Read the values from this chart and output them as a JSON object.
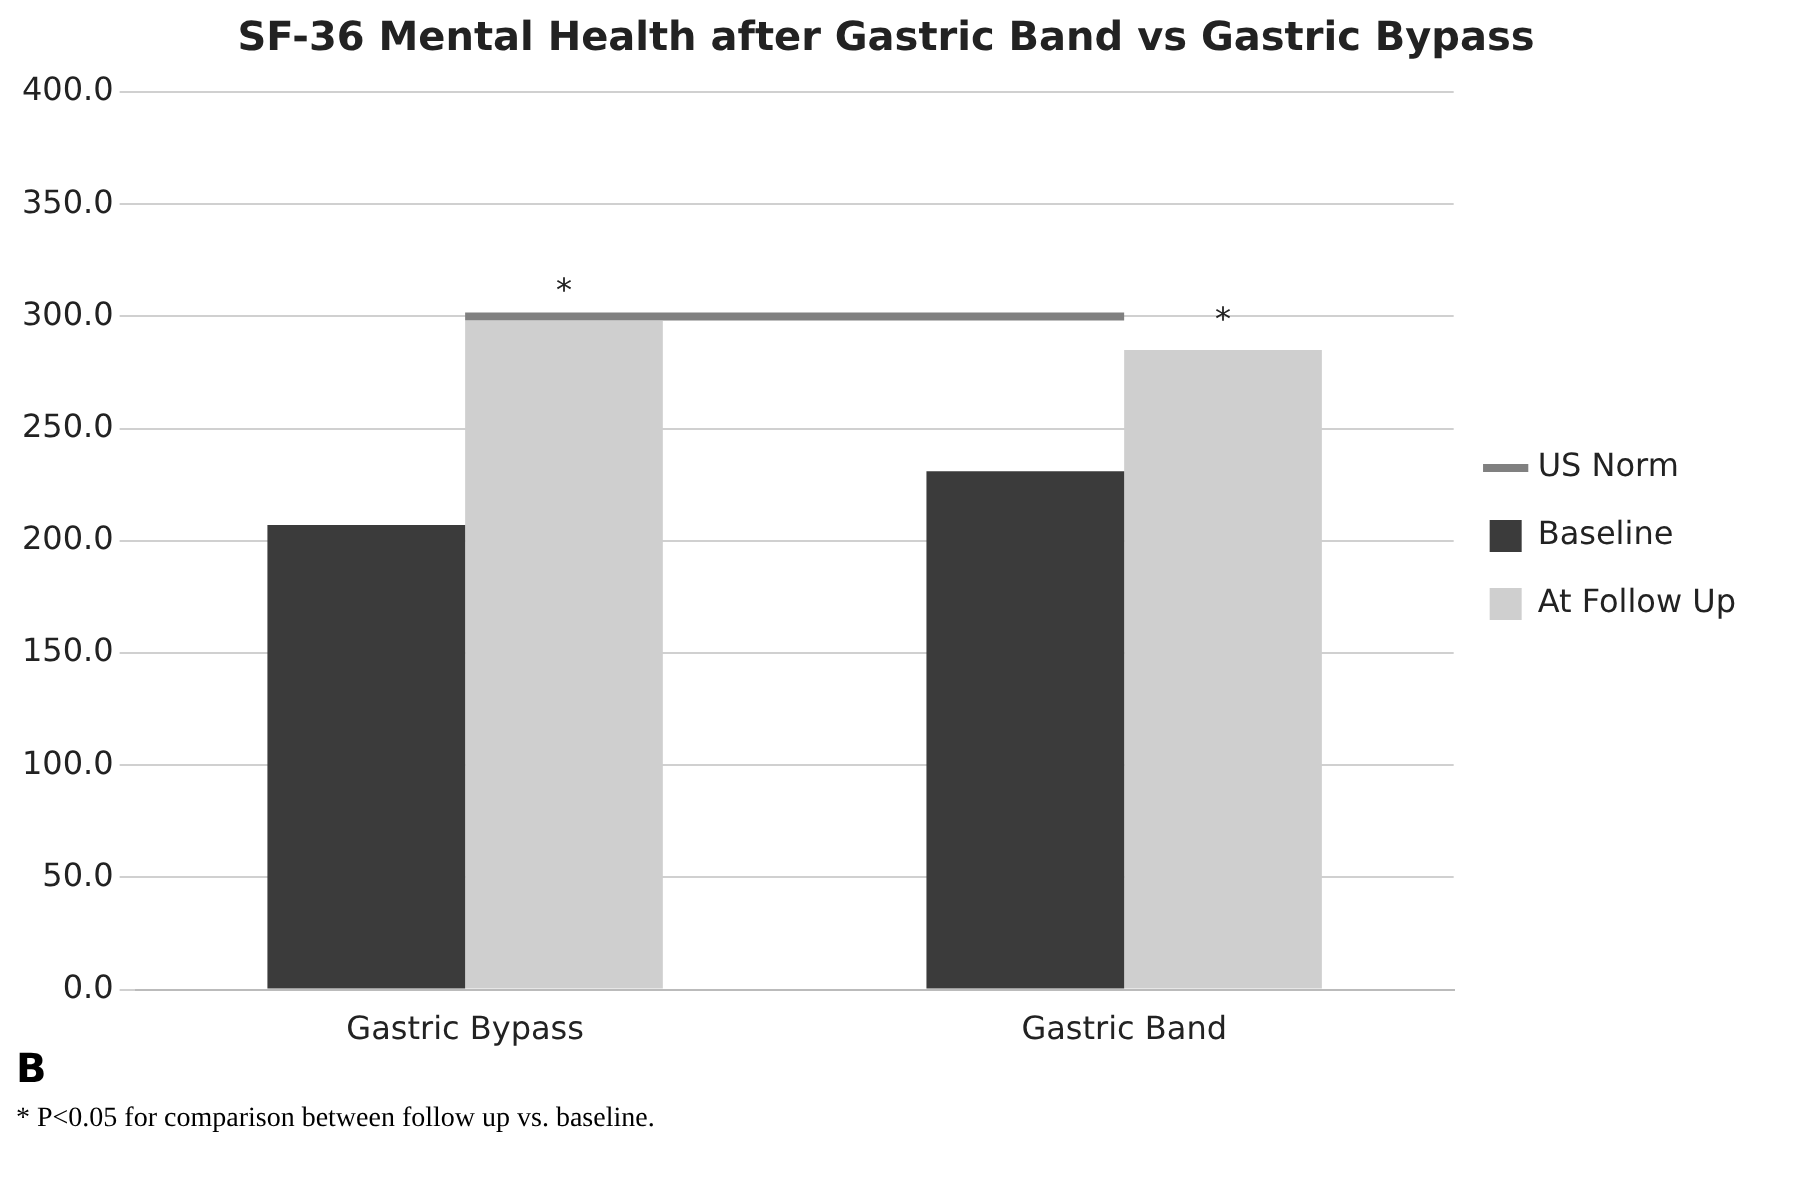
{
  "chart_data": {
    "type": "bar",
    "title": "SF-36 Mental Health after Gastric Band vs Gastric Bypass",
    "categories": [
      "Gastric Bypass",
      "Gastric Band"
    ],
    "series": [
      {
        "name": "Baseline",
        "color": "#3b3b3b",
        "values": [
          207,
          231
        ]
      },
      {
        "name": "At Follow Up",
        "color": "#cfcfcf",
        "values": [
          298,
          285
        ]
      },
      {
        "name": "US Norm",
        "type": "line",
        "color": "#808080",
        "values": [
          300,
          300
        ]
      }
    ],
    "ylim": [
      0,
      400
    ],
    "yticks": [
      {
        "value": 0,
        "label": "0.0"
      },
      {
        "value": 50,
        "label": "50.0"
      },
      {
        "value": 100,
        "label": "100.0"
      },
      {
        "value": 150,
        "label": "150.0"
      },
      {
        "value": 200,
        "label": "200.0"
      },
      {
        "value": 250,
        "label": "250.0"
      },
      {
        "value": 300,
        "label": "300.0"
      },
      {
        "value": 350,
        "label": "350.0"
      },
      {
        "value": 400,
        "label": "400.0"
      }
    ],
    "grid": "y",
    "legend": "right",
    "annotations": [
      {
        "text": "*",
        "x": "Gastric Bypass",
        "y": 298
      },
      {
        "text": "*",
        "x": "Gastric Band",
        "y": 285
      },
      "B",
      "* P<0.05 for comparison between follow up vs. baseline."
    ]
  }
}
